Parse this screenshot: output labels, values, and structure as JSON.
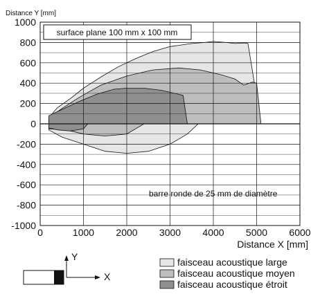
{
  "chart_data": {
    "type": "area",
    "xlabel": "Distance X [mm]",
    "ylabel": "Distance Y [mm]",
    "xlim": [
      0,
      6000
    ],
    "ylim": [
      -1000,
      1000
    ],
    "x_ticks": [
      0,
      1000,
      2000,
      3000,
      4000,
      5000,
      6000
    ],
    "y_ticks": [
      1000,
      800,
      600,
      400,
      200,
      0,
      -200,
      -400,
      -600,
      -800,
      -1000
    ],
    "grid": true,
    "annotations": {
      "target_box": "surface plane 100 mm x 100 mm",
      "target_rod": "barre ronde de 25 mm de diamètre"
    },
    "series": [
      {
        "name": "faisceau acoustique large",
        "color": "#e6e6e6",
        "outline": [
          [
            200,
            60
          ],
          [
            400,
            160
          ],
          [
            700,
            250
          ],
          [
            1000,
            350
          ],
          [
            1400,
            460
          ],
          [
            1800,
            560
          ],
          [
            2200,
            640
          ],
          [
            2600,
            710
          ],
          [
            3000,
            760
          ],
          [
            3500,
            790
          ],
          [
            3800,
            800
          ],
          [
            4000,
            810
          ],
          [
            4300,
            800
          ],
          [
            4500,
            790
          ],
          [
            4700,
            795
          ],
          [
            4800,
            790
          ],
          [
            5100,
            0
          ],
          [
            3650,
            0
          ],
          [
            3400,
            -100
          ],
          [
            3000,
            -200
          ],
          [
            2500,
            -270
          ],
          [
            2000,
            -290
          ],
          [
            1500,
            -270
          ],
          [
            1000,
            -200
          ],
          [
            500,
            -130
          ],
          [
            200,
            -60
          ]
        ]
      },
      {
        "name": "faisceau acoustique moyen",
        "color": "#bdbdbd",
        "outline": [
          [
            200,
            60
          ],
          [
            500,
            150
          ],
          [
            900,
            260
          ],
          [
            1400,
            380
          ],
          [
            2000,
            470
          ],
          [
            2600,
            530
          ],
          [
            3200,
            550
          ],
          [
            3700,
            530
          ],
          [
            4200,
            480
          ],
          [
            4500,
            440
          ],
          [
            4700,
            380
          ],
          [
            4900,
            410
          ],
          [
            5000,
            400
          ],
          [
            5100,
            0
          ],
          [
            2400,
            0
          ],
          [
            2000,
            -100
          ],
          [
            1500,
            -120
          ],
          [
            1000,
            -100
          ],
          [
            600,
            -60
          ],
          [
            200,
            -50
          ]
        ]
      },
      {
        "name": "faisceau acoustique étroit",
        "color": "#8f8f8f",
        "outline": [
          [
            200,
            80
          ],
          [
            500,
            140
          ],
          [
            900,
            220
          ],
          [
            1300,
            290
          ],
          [
            1700,
            340
          ],
          [
            2000,
            350
          ],
          [
            2400,
            350
          ],
          [
            2800,
            330
          ],
          [
            3300,
            280
          ],
          [
            3400,
            0
          ],
          [
            1100,
            0
          ],
          [
            1000,
            -50
          ],
          [
            700,
            -70
          ],
          [
            400,
            -60
          ],
          [
            200,
            -40
          ]
        ]
      }
    ],
    "legend": {
      "position": "bottom-right",
      "entries": [
        "faisceau acoustique large",
        "faisceau acoustique moyen",
        "faisceau acoustique étroit"
      ]
    },
    "sensor_diagram": {
      "y_label": "Y",
      "x_label": "X"
    }
  }
}
